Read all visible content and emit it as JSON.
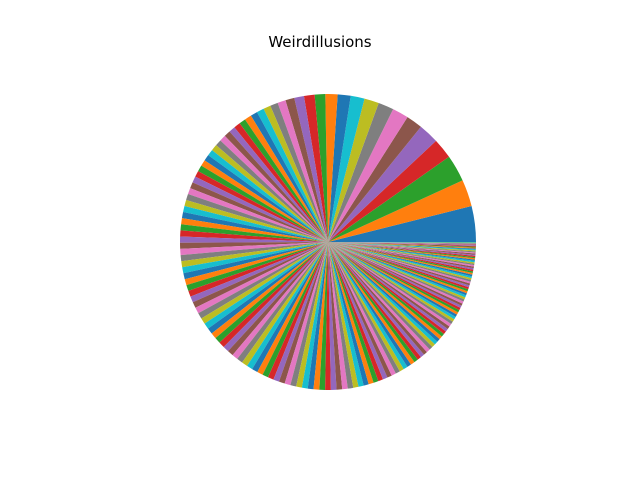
{
  "chart_data": {
    "type": "pie",
    "title": "Weirdillusions",
    "start_angle_deg": 0,
    "direction": "counterclockwise",
    "palette": [
      "#1f77b4",
      "#ff7f0e",
      "#2ca02c",
      "#d62728",
      "#9467bd",
      "#8c564b",
      "#e377c2",
      "#7f7f7f",
      "#bcbd22",
      "#17becf"
    ],
    "values": [
      0.044,
      0.033,
      0.033,
      0.025,
      0.025,
      0.02,
      0.02,
      0.019,
      0.018,
      0.017,
      0.016,
      0.015,
      0.013,
      0.013,
      0.012,
      0.011,
      0.01,
      0.0095,
      0.009,
      0.009,
      0.0085,
      0.0085,
      0.008,
      0.008,
      0.0078,
      0.0078,
      0.0077,
      0.0077,
      0.0077,
      0.0077,
      0.0077,
      0.0076,
      0.0076,
      0.0076,
      0.0076,
      0.0076,
      0.0076,
      0.0076,
      0.0075,
      0.0075,
      0.0075,
      0.0075,
      0.0075,
      0.0075,
      0.0075,
      0.0075,
      0.0075,
      0.0075,
      0.0074,
      0.0074,
      0.0074,
      0.0074,
      0.0074,
      0.0074,
      0.0074,
      0.0074,
      0.0074,
      0.0074,
      0.0074,
      0.0074,
      0.0073,
      0.0073,
      0.0073,
      0.0073,
      0.0073,
      0.0073,
      0.0073,
      0.0073,
      0.0073,
      0.0073,
      0.0072,
      0.0072,
      0.0072,
      0.0072,
      0.0072,
      0.0072,
      0.0072,
      0.0072,
      0.0071,
      0.0071,
      0.0071,
      0.0071,
      0.007,
      0.007,
      0.0069,
      0.0069,
      0.0068,
      0.0067,
      0.0065,
      0.0064,
      0.0063,
      0.0062,
      0.0061,
      0.006,
      0.0058,
      0.0057,
      0.0056,
      0.0055,
      0.0054,
      0.0053,
      0.0052,
      0.0051,
      0.005,
      0.0049,
      0.0048,
      0.0047,
      0.0046,
      0.0045,
      0.0044,
      0.0043,
      0.0042,
      0.0041,
      0.004,
      0.0039,
      0.0038,
      0.0037,
      0.0036,
      0.0035,
      0.0034,
      0.0033,
      0.0032,
      0.0031,
      0.003,
      0.003,
      0.0029,
      0.0029,
      0.0028,
      0.0028,
      0.0027,
      0.0027,
      0.0026,
      0.0026,
      0.0025,
      0.0025,
      0.0024,
      0.0024,
      0.0023,
      0.0023,
      0.0022,
      0.0022,
      0.0021,
      0.0021,
      0.002,
      0.002,
      0.0019,
      0.0019,
      0.0018,
      0.0018,
      0.0017,
      0.0017,
      0.0016,
      0.0016,
      0.0015,
      0.0015,
      0.0014,
      0.0014,
      0.0013,
      0.0013,
      0.0012,
      0.0012,
      0.0011,
      0.0011,
      0.001,
      0.001,
      0.0009,
      0.0009,
      0.0008,
      0.0008,
      0.0007,
      0.0007
    ]
  }
}
